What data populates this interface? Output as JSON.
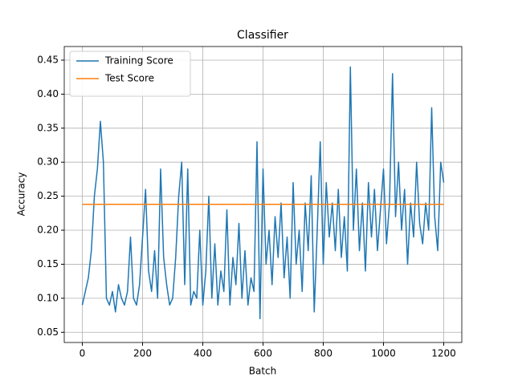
{
  "chart_data": {
    "type": "line",
    "title": "Classifier",
    "x_label": "Batch",
    "y_label": "Accuracy",
    "series": [
      {
        "name": "Training Score",
        "color": "#1f77b4",
        "x": [
          0,
          10,
          20,
          30,
          40,
          50,
          60,
          70,
          80,
          90,
          100,
          110,
          120,
          130,
          140,
          150,
          160,
          170,
          180,
          190,
          200,
          210,
          220,
          230,
          240,
          250,
          260,
          270,
          280,
          290,
          300,
          310,
          320,
          330,
          340,
          350,
          360,
          370,
          380,
          390,
          400,
          410,
          420,
          430,
          440,
          450,
          460,
          470,
          480,
          490,
          500,
          510,
          520,
          530,
          540,
          550,
          560,
          570,
          580,
          590,
          600,
          610,
          620,
          630,
          640,
          650,
          660,
          670,
          680,
          690,
          700,
          710,
          720,
          730,
          740,
          750,
          760,
          770,
          780,
          790,
          800,
          810,
          820,
          830,
          840,
          850,
          860,
          870,
          880,
          890,
          900,
          910,
          920,
          930,
          940,
          950,
          960,
          970,
          980,
          990,
          1000,
          1010,
          1020,
          1030,
          1040,
          1050,
          1060,
          1070,
          1080,
          1090,
          1100,
          1110,
          1120,
          1130,
          1140,
          1150,
          1160,
          1170,
          1180,
          1190,
          1200
        ],
        "values": [
          0.09,
          0.11,
          0.13,
          0.17,
          0.25,
          0.29,
          0.36,
          0.3,
          0.1,
          0.09,
          0.11,
          0.08,
          0.12,
          0.1,
          0.09,
          0.11,
          0.19,
          0.1,
          0.09,
          0.12,
          0.19,
          0.26,
          0.14,
          0.11,
          0.17,
          0.1,
          0.29,
          0.16,
          0.12,
          0.09,
          0.1,
          0.16,
          0.25,
          0.3,
          0.12,
          0.29,
          0.09,
          0.11,
          0.1,
          0.2,
          0.09,
          0.14,
          0.25,
          0.1,
          0.18,
          0.09,
          0.14,
          0.11,
          0.23,
          0.09,
          0.16,
          0.12,
          0.21,
          0.1,
          0.17,
          0.09,
          0.13,
          0.11,
          0.33,
          0.07,
          0.29,
          0.15,
          0.2,
          0.12,
          0.22,
          0.16,
          0.24,
          0.13,
          0.19,
          0.1,
          0.27,
          0.15,
          0.2,
          0.11,
          0.24,
          0.17,
          0.28,
          0.08,
          0.2,
          0.33,
          0.15,
          0.27,
          0.19,
          0.24,
          0.17,
          0.26,
          0.16,
          0.22,
          0.14,
          0.44,
          0.2,
          0.29,
          0.17,
          0.24,
          0.14,
          0.27,
          0.19,
          0.26,
          0.17,
          0.23,
          0.29,
          0.18,
          0.24,
          0.43,
          0.22,
          0.3,
          0.2,
          0.26,
          0.15,
          0.24,
          0.19,
          0.3,
          0.21,
          0.18,
          0.24,
          0.2,
          0.38,
          0.22,
          0.17,
          0.3,
          0.27
        ]
      },
      {
        "name": "Test Score",
        "color": "#ff7f0e",
        "x": [
          0,
          1200
        ],
        "values": [
          0.238,
          0.238
        ]
      }
    ],
    "xlim": [
      -60,
      1260
    ],
    "ylim": [
      0.035,
      0.47
    ],
    "xticks": [
      0,
      200,
      400,
      600,
      800,
      1000,
      1200
    ],
    "yticks": [
      0.05,
      {
        "value": 0.1,
        "label": "0.10"
      },
      0.15,
      {
        "value": 0.2,
        "label": "0.20"
      },
      0.25,
      {
        "value": 0.3,
        "label": "0.30"
      },
      0.35,
      {
        "value": 0.4,
        "label": "0.40"
      },
      0.45
    ],
    "grid": true,
    "legend": "upper-left"
  }
}
